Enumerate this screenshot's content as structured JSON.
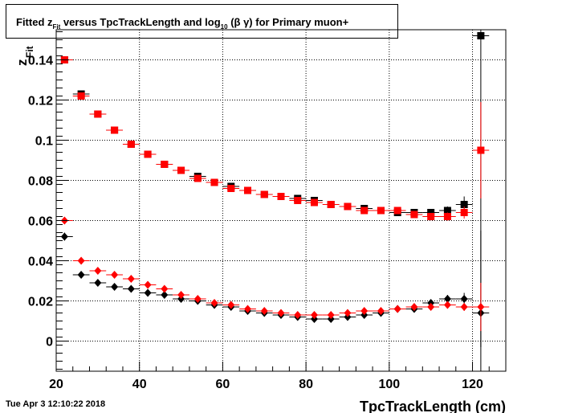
{
  "title": {
    "prefix": "Fitted  z",
    "sub1": "Fit",
    "middle": "  versus TpcTrackLength and log",
    "sub2": "10",
    "suffix": " (β γ) for Primary muon+"
  },
  "timestamp": "Tue Apr  3 12:10:22 2018",
  "chart_data": {
    "type": "scatter",
    "title": "Fitted  zFit  versus TpcTrackLength and log10 (β γ) for Primary muon+",
    "xlabel": "TpcTrackLength (cm)",
    "ylabel": "zFit",
    "ylabel_main": "z",
    "ylabel_sub": "Fit",
    "xlim": [
      20,
      128
    ],
    "ylim": [
      -0.015,
      0.155
    ],
    "x_ticks": [
      20,
      40,
      60,
      80,
      100,
      120
    ],
    "y_ticks": [
      0,
      0.02,
      0.04,
      0.06,
      0.08,
      0.1,
      0.12,
      0.14
    ],
    "y_tick_labels": [
      "0",
      "0.02",
      "0.04",
      "0.06",
      "0.08",
      "0.1",
      "0.12",
      "0.14"
    ],
    "x_tick_labels": [
      "20",
      "40",
      "60",
      "80",
      "100",
      "120"
    ],
    "grid": true,
    "legend": "none",
    "x_bin_halfwidth": 2,
    "series": [
      {
        "marker": "square",
        "color": "#000000",
        "x": [
          22,
          26,
          30,
          34,
          38,
          42,
          46,
          50,
          54,
          58,
          62,
          66,
          70,
          74,
          78,
          82,
          86,
          90,
          94,
          98,
          102,
          106,
          110,
          114,
          118,
          122
        ],
        "y": [
          0.14,
          0.123,
          0.113,
          0.105,
          0.098,
          0.093,
          0.088,
          0.085,
          0.082,
          0.079,
          0.077,
          0.075,
          0.073,
          0.072,
          0.071,
          0.07,
          0.068,
          0.067,
          0.066,
          0.065,
          0.064,
          0.064,
          0.064,
          0.065,
          0.068,
          0.152
        ],
        "yerr": [
          0,
          0,
          0,
          0,
          0,
          0,
          0,
          0,
          0,
          0,
          0,
          0,
          0,
          0,
          0,
          0,
          0,
          0,
          0,
          0,
          0,
          0,
          0.001,
          0.002,
          0.004,
          0.155
        ]
      },
      {
        "marker": "square",
        "color": "#ff0000",
        "x": [
          22,
          26,
          30,
          34,
          38,
          42,
          46,
          50,
          54,
          58,
          62,
          66,
          70,
          74,
          78,
          82,
          86,
          90,
          94,
          98,
          102,
          106,
          110,
          114,
          118,
          122
        ],
        "y": [
          0.14,
          0.122,
          0.113,
          0.105,
          0.098,
          0.093,
          0.088,
          0.085,
          0.081,
          0.079,
          0.076,
          0.075,
          0.073,
          0.072,
          0.07,
          0.069,
          0.068,
          0.067,
          0.065,
          0.065,
          0.065,
          0.063,
          0.062,
          0.062,
          0.064,
          0.095
        ],
        "yerr": [
          0,
          0,
          0,
          0,
          0,
          0,
          0,
          0,
          0,
          0,
          0,
          0,
          0,
          0,
          0,
          0,
          0,
          0,
          0,
          0,
          0,
          0,
          0.001,
          0.002,
          0.003,
          0.024
        ]
      },
      {
        "marker": "diamond",
        "color": "#000000",
        "x": [
          22,
          26,
          30,
          34,
          38,
          42,
          46,
          50,
          54,
          58,
          62,
          66,
          70,
          74,
          78,
          82,
          86,
          90,
          94,
          98,
          102,
          106,
          110,
          114,
          118,
          122
        ],
        "y": [
          0.052,
          0.033,
          0.029,
          0.027,
          0.026,
          0.024,
          0.023,
          0.021,
          0.02,
          0.018,
          0.017,
          0.015,
          0.014,
          0.013,
          0.012,
          0.011,
          0.011,
          0.012,
          0.013,
          0.014,
          0.016,
          0.016,
          0.019,
          0.021,
          0.021,
          0.014
        ],
        "yerr": [
          0.002,
          0.001,
          0,
          0,
          0,
          0,
          0,
          0,
          0,
          0,
          0,
          0,
          0,
          0,
          0,
          0,
          0,
          0,
          0,
          0,
          0,
          0.001,
          0.001,
          0.002,
          0.003,
          0.041
        ]
      },
      {
        "marker": "diamond",
        "color": "#ff0000",
        "x": [
          22,
          26,
          30,
          34,
          38,
          42,
          46,
          50,
          54,
          58,
          62,
          66,
          70,
          74,
          78,
          82,
          86,
          90,
          94,
          98,
          102,
          106,
          110,
          114,
          118,
          122
        ],
        "y": [
          0.06,
          0.04,
          0.035,
          0.033,
          0.031,
          0.028,
          0.026,
          0.023,
          0.021,
          0.019,
          0.018,
          0.016,
          0.015,
          0.014,
          0.013,
          0.013,
          0.013,
          0.014,
          0.015,
          0.015,
          0.016,
          0.017,
          0.017,
          0.018,
          0.017,
          0.017
        ],
        "yerr": [
          0.001,
          0.001,
          0,
          0,
          0,
          0,
          0,
          0,
          0,
          0,
          0,
          0,
          0,
          0,
          0,
          0,
          0,
          0,
          0,
          0,
          0,
          0,
          0.001,
          0.001,
          0.002,
          0.012
        ]
      }
    ]
  }
}
